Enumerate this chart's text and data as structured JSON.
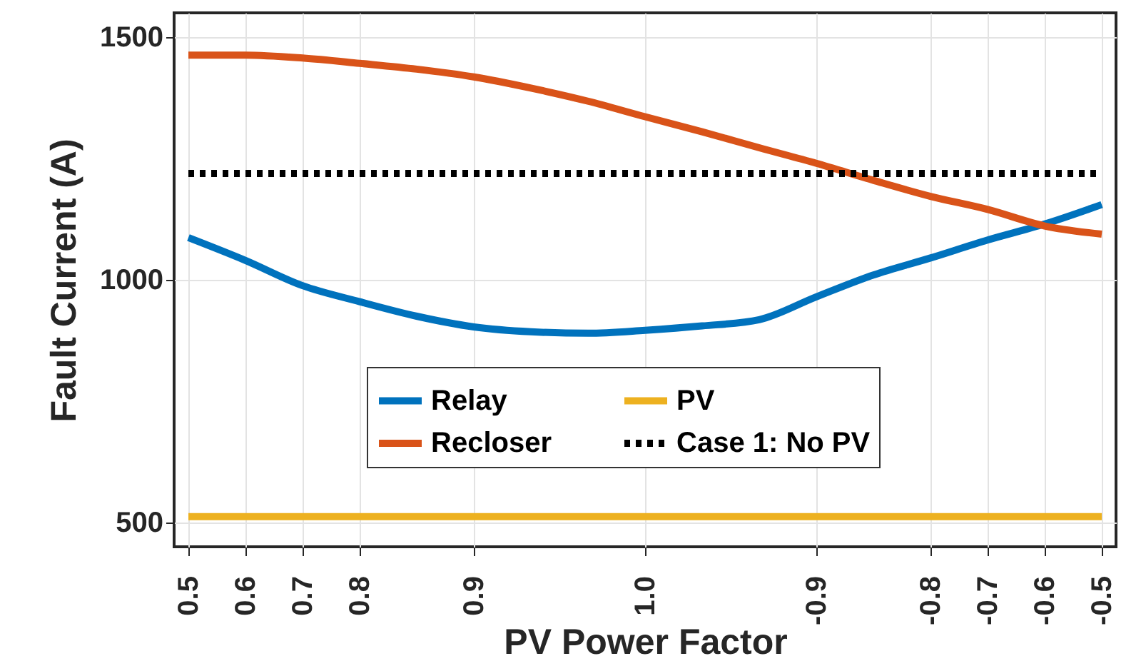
{
  "chart_data": {
    "type": "line",
    "xlabel": "PV Power Factor",
    "ylabel": "Fault Current (A)",
    "categories": [
      "0.5",
      "0.6",
      "0.7",
      "0.8",
      null,
      "0.9",
      null,
      null,
      "1.0",
      null,
      null,
      "-0.9",
      null,
      "-0.8",
      "-0.7",
      "-0.6",
      "-0.5"
    ],
    "series": [
      {
        "name": "Relay",
        "color": "#0072bd",
        "values": [
          1087,
          1040,
          988,
          955,
          925,
          903,
          893,
          890,
          896,
          905,
          918,
          965,
          1010,
          1045,
          1082,
          1115,
          1155
        ]
      },
      {
        "name": "PV",
        "color": "#edb120",
        "values": [
          512,
          512,
          512,
          512,
          512,
          512,
          512,
          512,
          512,
          512,
          512,
          512,
          512,
          512,
          512,
          512,
          512
        ]
      },
      {
        "name": "Recloser",
        "color": "#d95319",
        "values": [
          1463,
          1463,
          1457,
          1446,
          1434,
          1418,
          1395,
          1368,
          1336,
          1305,
          1272,
          1240,
          1205,
          1172,
          1145,
          1111,
          1094
        ]
      },
      {
        "name": "Case 1: No PV",
        "color": "#000000",
        "line_style": "dotted",
        "values": [
          1219,
          1219,
          1219,
          1219,
          1219,
          1219,
          1219,
          1219,
          1219,
          1219,
          1219,
          1219,
          1219,
          1219,
          1219,
          1219,
          1219
        ]
      }
    ],
    "ylim": [
      450,
      1550
    ],
    "yticks": [
      500,
      1000,
      1500
    ],
    "grid": true,
    "legend": "bottom",
    "marker": "none",
    "line_style": "solid"
  }
}
